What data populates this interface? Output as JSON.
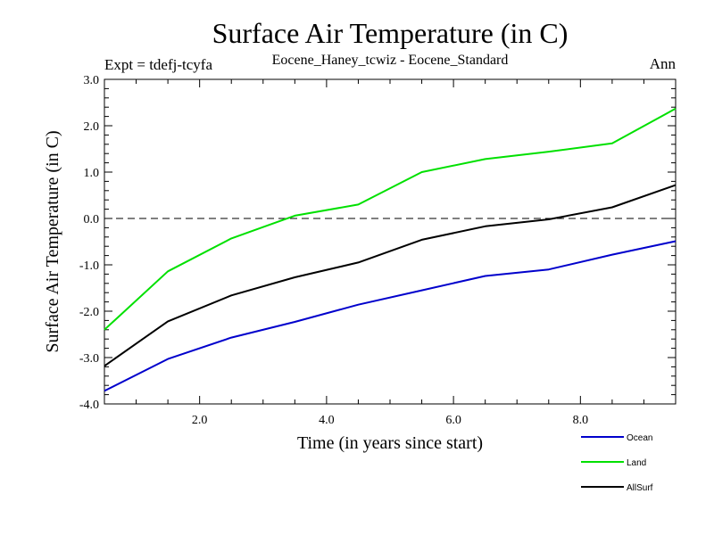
{
  "chart_data": {
    "type": "line",
    "title": "Surface Air Temperature (in C)",
    "subtitle_left": "Expt = tdefj-tcyfa",
    "subtitle_center": "Eocene_Haney_tcwiz - Eocene_Standard",
    "subtitle_right": "Ann",
    "xlabel": "Time (in years since start)",
    "ylabel": "Surface Air Temperature (in C)",
    "xlim": [
      0.5,
      9.5
    ],
    "ylim": [
      -4.0,
      3.0
    ],
    "x_ticks": [
      2.0,
      4.0,
      6.0,
      8.0
    ],
    "x_tick_labels": [
      "2.0",
      "4.0",
      "6.0",
      "8.0"
    ],
    "y_ticks": [
      -4.0,
      -3.0,
      -2.0,
      -1.0,
      0.0,
      1.0,
      2.0,
      3.0
    ],
    "y_tick_labels": [
      "-4.0",
      "-3.0",
      "-2.0",
      "-1.0",
      "0.0",
      "1.0",
      "2.0",
      "3.0"
    ],
    "zero_line": "dashed",
    "legend_position": "bottom-right, below plot",
    "x": [
      0.5,
      1.5,
      2.5,
      3.5,
      4.5,
      5.5,
      6.5,
      7.5,
      8.5,
      9.5
    ],
    "series": [
      {
        "name": "Ocean",
        "color": "#0000cc",
        "values": [
          -3.72,
          -3.03,
          -2.57,
          -2.23,
          -1.86,
          -1.55,
          -1.24,
          -1.1,
          -0.78,
          -0.49
        ]
      },
      {
        "name": "Land",
        "color": "#00e000",
        "values": [
          -2.4,
          -1.14,
          -0.43,
          0.06,
          0.3,
          1.0,
          1.28,
          1.44,
          1.62,
          2.37
        ]
      },
      {
        "name": "AllSurf",
        "color": "#000000",
        "values": [
          -3.18,
          -2.22,
          -1.66,
          -1.27,
          -0.95,
          -0.46,
          -0.17,
          -0.02,
          0.24,
          0.72
        ]
      }
    ]
  }
}
